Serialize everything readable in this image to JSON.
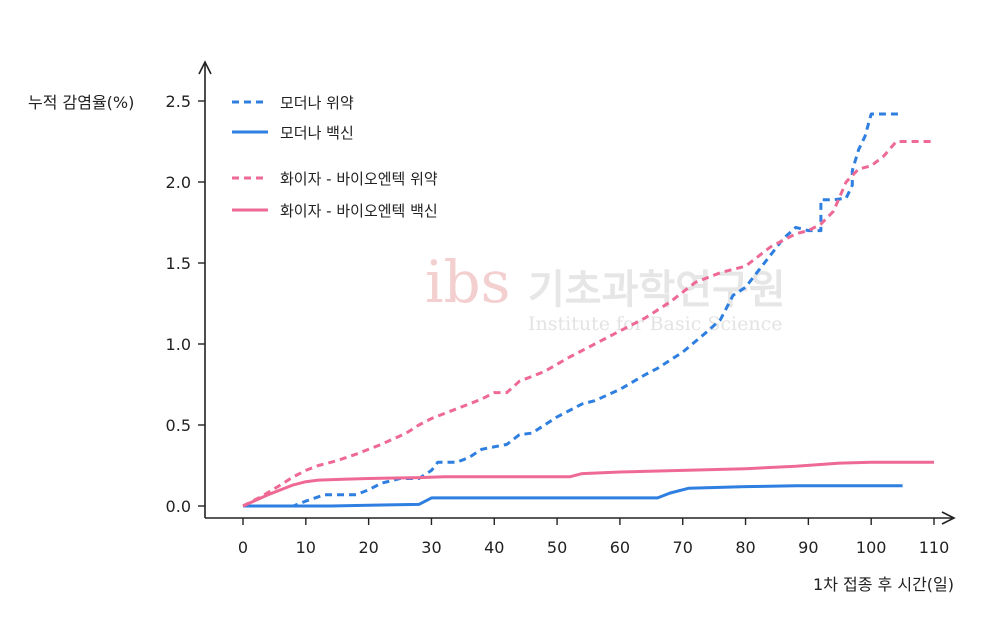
{
  "chart_data": {
    "type": "line",
    "ylabel": "누적 감염율(%)",
    "xlabel": "1차 접종 후 시간(일)",
    "xlim": [
      0,
      110
    ],
    "ylim": [
      0,
      2.5
    ],
    "xticks": [
      0,
      10,
      20,
      30,
      40,
      50,
      60,
      70,
      80,
      90,
      100,
      110
    ],
    "yticks": [
      "0.0",
      "0.5",
      "1.0",
      "1.5",
      "2.0",
      "2.5"
    ],
    "legend_position": "top-left",
    "series": [
      {
        "name": "모더나 위약",
        "color": "#2f7fe0",
        "dash": true,
        "x": [
          0,
          4,
          8,
          10,
          13,
          18,
          20,
          22,
          25,
          28,
          30,
          31,
          34,
          36,
          38,
          42,
          44,
          46,
          50,
          54,
          56,
          60,
          64,
          66,
          70,
          74,
          76,
          78,
          80,
          82,
          84,
          86,
          88,
          90,
          92,
          92,
          94,
          96,
          97,
          97,
          98,
          99,
          100,
          102,
          105
        ],
        "y": [
          0.0,
          0.0,
          0.0,
          0.03,
          0.07,
          0.07,
          0.1,
          0.14,
          0.17,
          0.17,
          0.22,
          0.27,
          0.27,
          0.3,
          0.35,
          0.38,
          0.44,
          0.45,
          0.55,
          0.63,
          0.65,
          0.72,
          0.81,
          0.85,
          0.95,
          1.08,
          1.15,
          1.3,
          1.35,
          1.45,
          1.55,
          1.65,
          1.72,
          1.7,
          1.7,
          1.89,
          1.89,
          1.9,
          1.98,
          2.07,
          2.2,
          2.28,
          2.42,
          2.42,
          2.42
        ]
      },
      {
        "name": "모더나 백신",
        "color": "#2f7fe0",
        "dash": false,
        "x": [
          0,
          6,
          10,
          14,
          20,
          28,
          30,
          34,
          40,
          50,
          60,
          66,
          68,
          71,
          80,
          88,
          95,
          100,
          105
        ],
        "y": [
          0.0,
          0.0,
          0.0,
          0.0,
          0.005,
          0.01,
          0.05,
          0.05,
          0.05,
          0.05,
          0.05,
          0.05,
          0.08,
          0.11,
          0.12,
          0.125,
          0.125,
          0.125,
          0.125
        ]
      },
      {
        "name": "화이자 - 바이오엔텍 위약",
        "color": "#ee6a94",
        "dash": true,
        "x": [
          0,
          3,
          6,
          8,
          10,
          12,
          15,
          18,
          22,
          26,
          28,
          30,
          34,
          38,
          40,
          42,
          44,
          48,
          52,
          56,
          60,
          64,
          68,
          72,
          76,
          80,
          84,
          86,
          88,
          90,
          92,
          94,
          96,
          98,
          100,
          102,
          104,
          110
        ],
        "y": [
          0.0,
          0.06,
          0.13,
          0.18,
          0.22,
          0.25,
          0.28,
          0.32,
          0.38,
          0.45,
          0.5,
          0.54,
          0.6,
          0.66,
          0.7,
          0.7,
          0.77,
          0.83,
          0.92,
          1.0,
          1.08,
          1.16,
          1.26,
          1.38,
          1.44,
          1.48,
          1.6,
          1.64,
          1.68,
          1.7,
          1.74,
          1.82,
          2.0,
          2.08,
          2.1,
          2.16,
          2.25,
          2.25
        ]
      },
      {
        "name": "화이자 - 바이오엔텍 백신",
        "color": "#ee6a94",
        "dash": false,
        "x": [
          0,
          4,
          8,
          10,
          12,
          16,
          20,
          28,
          32,
          40,
          50,
          52,
          54,
          60,
          70,
          80,
          88,
          95,
          100,
          110
        ],
        "y": [
          0.0,
          0.07,
          0.13,
          0.15,
          0.16,
          0.165,
          0.17,
          0.175,
          0.18,
          0.18,
          0.18,
          0.18,
          0.2,
          0.21,
          0.22,
          0.23,
          0.245,
          0.265,
          0.27,
          0.27
        ]
      }
    ]
  },
  "watermark": {
    "logo": "ibs",
    "name_ko": "기초과학연구원",
    "name_en": "Institute for Basic Science"
  }
}
